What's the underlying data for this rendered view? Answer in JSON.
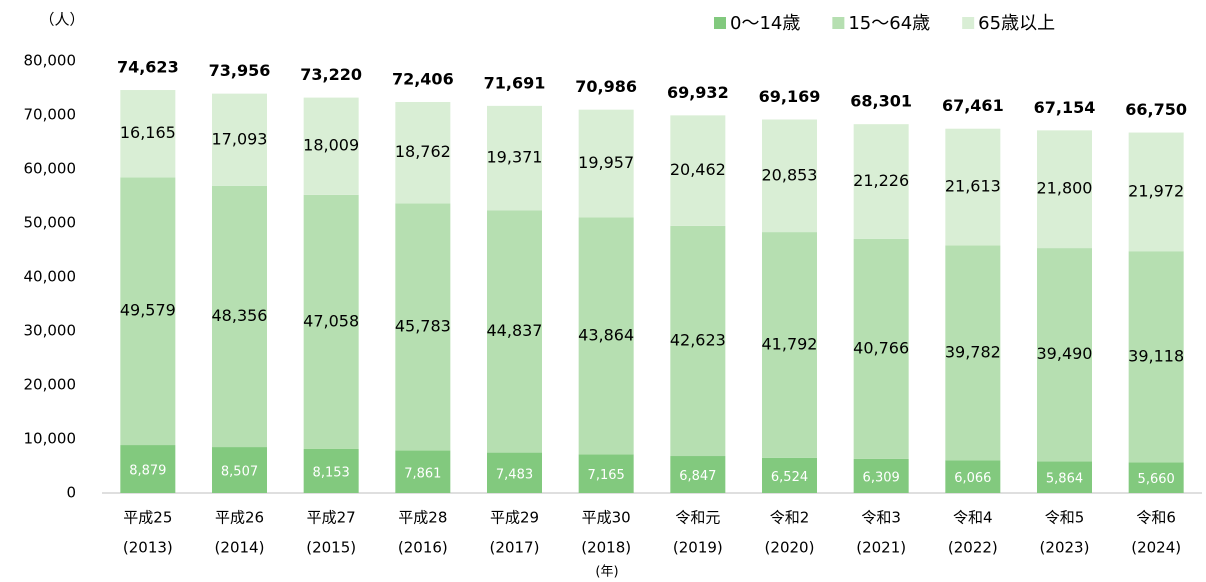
{
  "chart_data": {
    "type": "stacked_bar",
    "y_unit": "（人）",
    "x_unit": "(年)",
    "categories": [
      [
        "平成25",
        "(2013)"
      ],
      [
        "平成26",
        "(2014)"
      ],
      [
        "平成27",
        "(2015)"
      ],
      [
        "平成28",
        "(2016)"
      ],
      [
        "平成29",
        "(2017)"
      ],
      [
        "平成30",
        "(2018)"
      ],
      [
        "令和元",
        "(2019)"
      ],
      [
        "令和2",
        "(2020)"
      ],
      [
        "令和3",
        "(2021)"
      ],
      [
        "令和4",
        "(2022)"
      ],
      [
        "令和5",
        "(2023)"
      ],
      [
        "令和6",
        "(2024)"
      ]
    ],
    "series": [
      {
        "name": "0～14歳",
        "color": "#82c97e",
        "values": [
          8879,
          8507,
          8153,
          7861,
          7483,
          7165,
          6847,
          6524,
          6309,
          6066,
          5864,
          5660
        ],
        "value_labels": [
          "8,879",
          "8,507",
          "8,153",
          "7,861",
          "7,483",
          "7,165",
          "6,847",
          "6,524",
          "6,309",
          "6,066",
          "5,864",
          "5,660"
        ]
      },
      {
        "name": "15～64歳",
        "color": "#b6dfb1",
        "values": [
          49579,
          48356,
          47058,
          45783,
          44837,
          43864,
          42623,
          41792,
          40766,
          39782,
          39490,
          39118
        ],
        "value_labels": [
          "49,579",
          "48,356",
          "47,058",
          "45,783",
          "44,837",
          "43,864",
          "42,623",
          "41,792",
          "40,766",
          "39,782",
          "39,490",
          "39,118"
        ]
      },
      {
        "name": "65歳以上",
        "color": "#d9eed5",
        "values": [
          16165,
          17093,
          18009,
          18762,
          19371,
          19957,
          20462,
          20853,
          21226,
          21613,
          21800,
          21972
        ],
        "value_labels": [
          "16,165",
          "17,093",
          "18,009",
          "18,762",
          "19,371",
          "19,957",
          "20,462",
          "20,853",
          "21,226",
          "21,613",
          "21,800",
          "21,972"
        ]
      }
    ],
    "totals": [
      74623,
      73956,
      73220,
      72406,
      71691,
      70986,
      69932,
      69169,
      68301,
      67461,
      67154,
      66750
    ],
    "total_labels": [
      "74,623",
      "73,956",
      "73,220",
      "72,406",
      "71,691",
      "70,986",
      "69,932",
      "69,169",
      "68,301",
      "67,461",
      "67,154",
      "66,750"
    ],
    "ylim": [
      0,
      80000
    ],
    "yticks": [
      0,
      {
        "value": 10000,
        "label": "10,000"
      },
      {
        "value": 20000,
        "label": "20,000"
      },
      {
        "value": 30000,
        "label": "30,000"
      },
      {
        "value": 40000,
        "label": "40,000"
      },
      {
        "value": 50000,
        "label": "50,000"
      },
      {
        "value": 60000,
        "label": "60,000"
      },
      {
        "value": 70000,
        "label": "70,000"
      },
      {
        "value": 80000,
        "label": "80,000"
      }
    ],
    "legend": "top-right"
  }
}
